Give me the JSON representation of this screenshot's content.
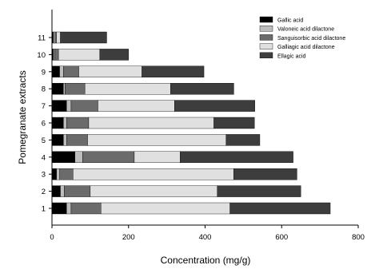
{
  "chart_data": {
    "type": "bar",
    "orientation": "horizontal",
    "stacked": true,
    "categories": [
      "1",
      "2",
      "3",
      "4",
      "5",
      "6",
      "7",
      "8",
      "9",
      "10",
      "11"
    ],
    "xlabel": "Concentration (mg/g)",
    "ylabel": "Pomegranate extracts",
    "xlim": [
      0,
      800
    ],
    "xticks": [
      "0",
      "200",
      "400",
      "600",
      "800"
    ],
    "grid": false,
    "legend_position": "top-right",
    "series": [
      {
        "name": "Gallic acid",
        "color": "#000000",
        "values": [
          38,
          22,
          12,
          60,
          30,
          30,
          38,
          30,
          20,
          4,
          4
        ]
      },
      {
        "name": "Valoneic acid dilactone",
        "color": "#bdbdbd",
        "values": [
          12,
          10,
          8,
          20,
          8,
          8,
          12,
          4,
          10,
          3,
          4
        ]
      },
      {
        "name": "Sanguisorbic acid dilactone",
        "color": "#6b6b6b",
        "values": [
          78,
          68,
          35,
          135,
          55,
          58,
          70,
          52,
          40,
          10,
          4
        ]
      },
      {
        "name": "Galliagic acid dilactone",
        "color": "#e0e0e0",
        "values": [
          337,
          332,
          420,
          120,
          362,
          327,
          200,
          224,
          165,
          108,
          10
        ]
      },
      {
        "name": "Ellagic acid",
        "color": "#3d3d3d",
        "values": [
          262,
          218,
          165,
          295,
          88,
          106,
          210,
          165,
          162,
          75,
          121
        ]
      }
    ],
    "legend_entries": [
      "Gallic acid",
      "Valoneic acid dilactone",
      "Sanguisorbic acid dilactone",
      "Galliagic acid dilactone",
      "Ellagic acid"
    ]
  }
}
